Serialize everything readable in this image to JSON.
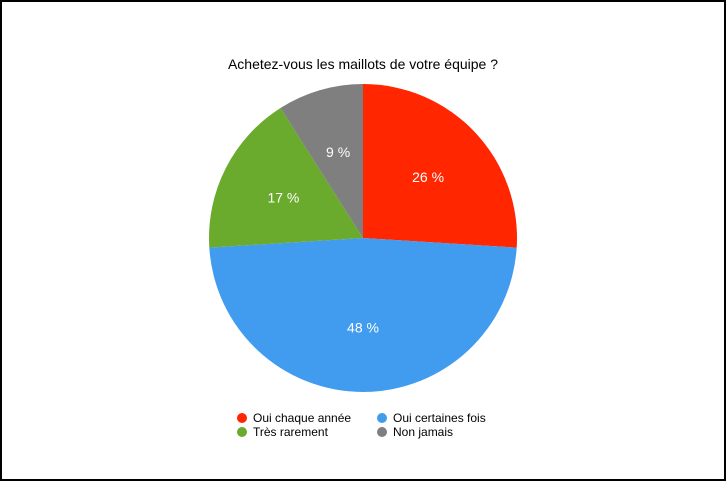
{
  "chart_data": {
    "type": "pie",
    "title": "Achetez-vous les maillots de votre équipe ?",
    "slices": [
      {
        "label": "Oui chaque année",
        "value": 26,
        "display": "26 %",
        "color": "#ff2600"
      },
      {
        "label": "Oui certaines fois",
        "value": 48,
        "display": "48 %",
        "color": "#419bee"
      },
      {
        "label": "Très rarement",
        "value": 17,
        "display": "17 %",
        "color": "#6aaa2d"
      },
      {
        "label": "Non jamais",
        "value": 9,
        "display": "9 %",
        "color": "#7f7f7f"
      }
    ],
    "legend_position": "bottom"
  }
}
